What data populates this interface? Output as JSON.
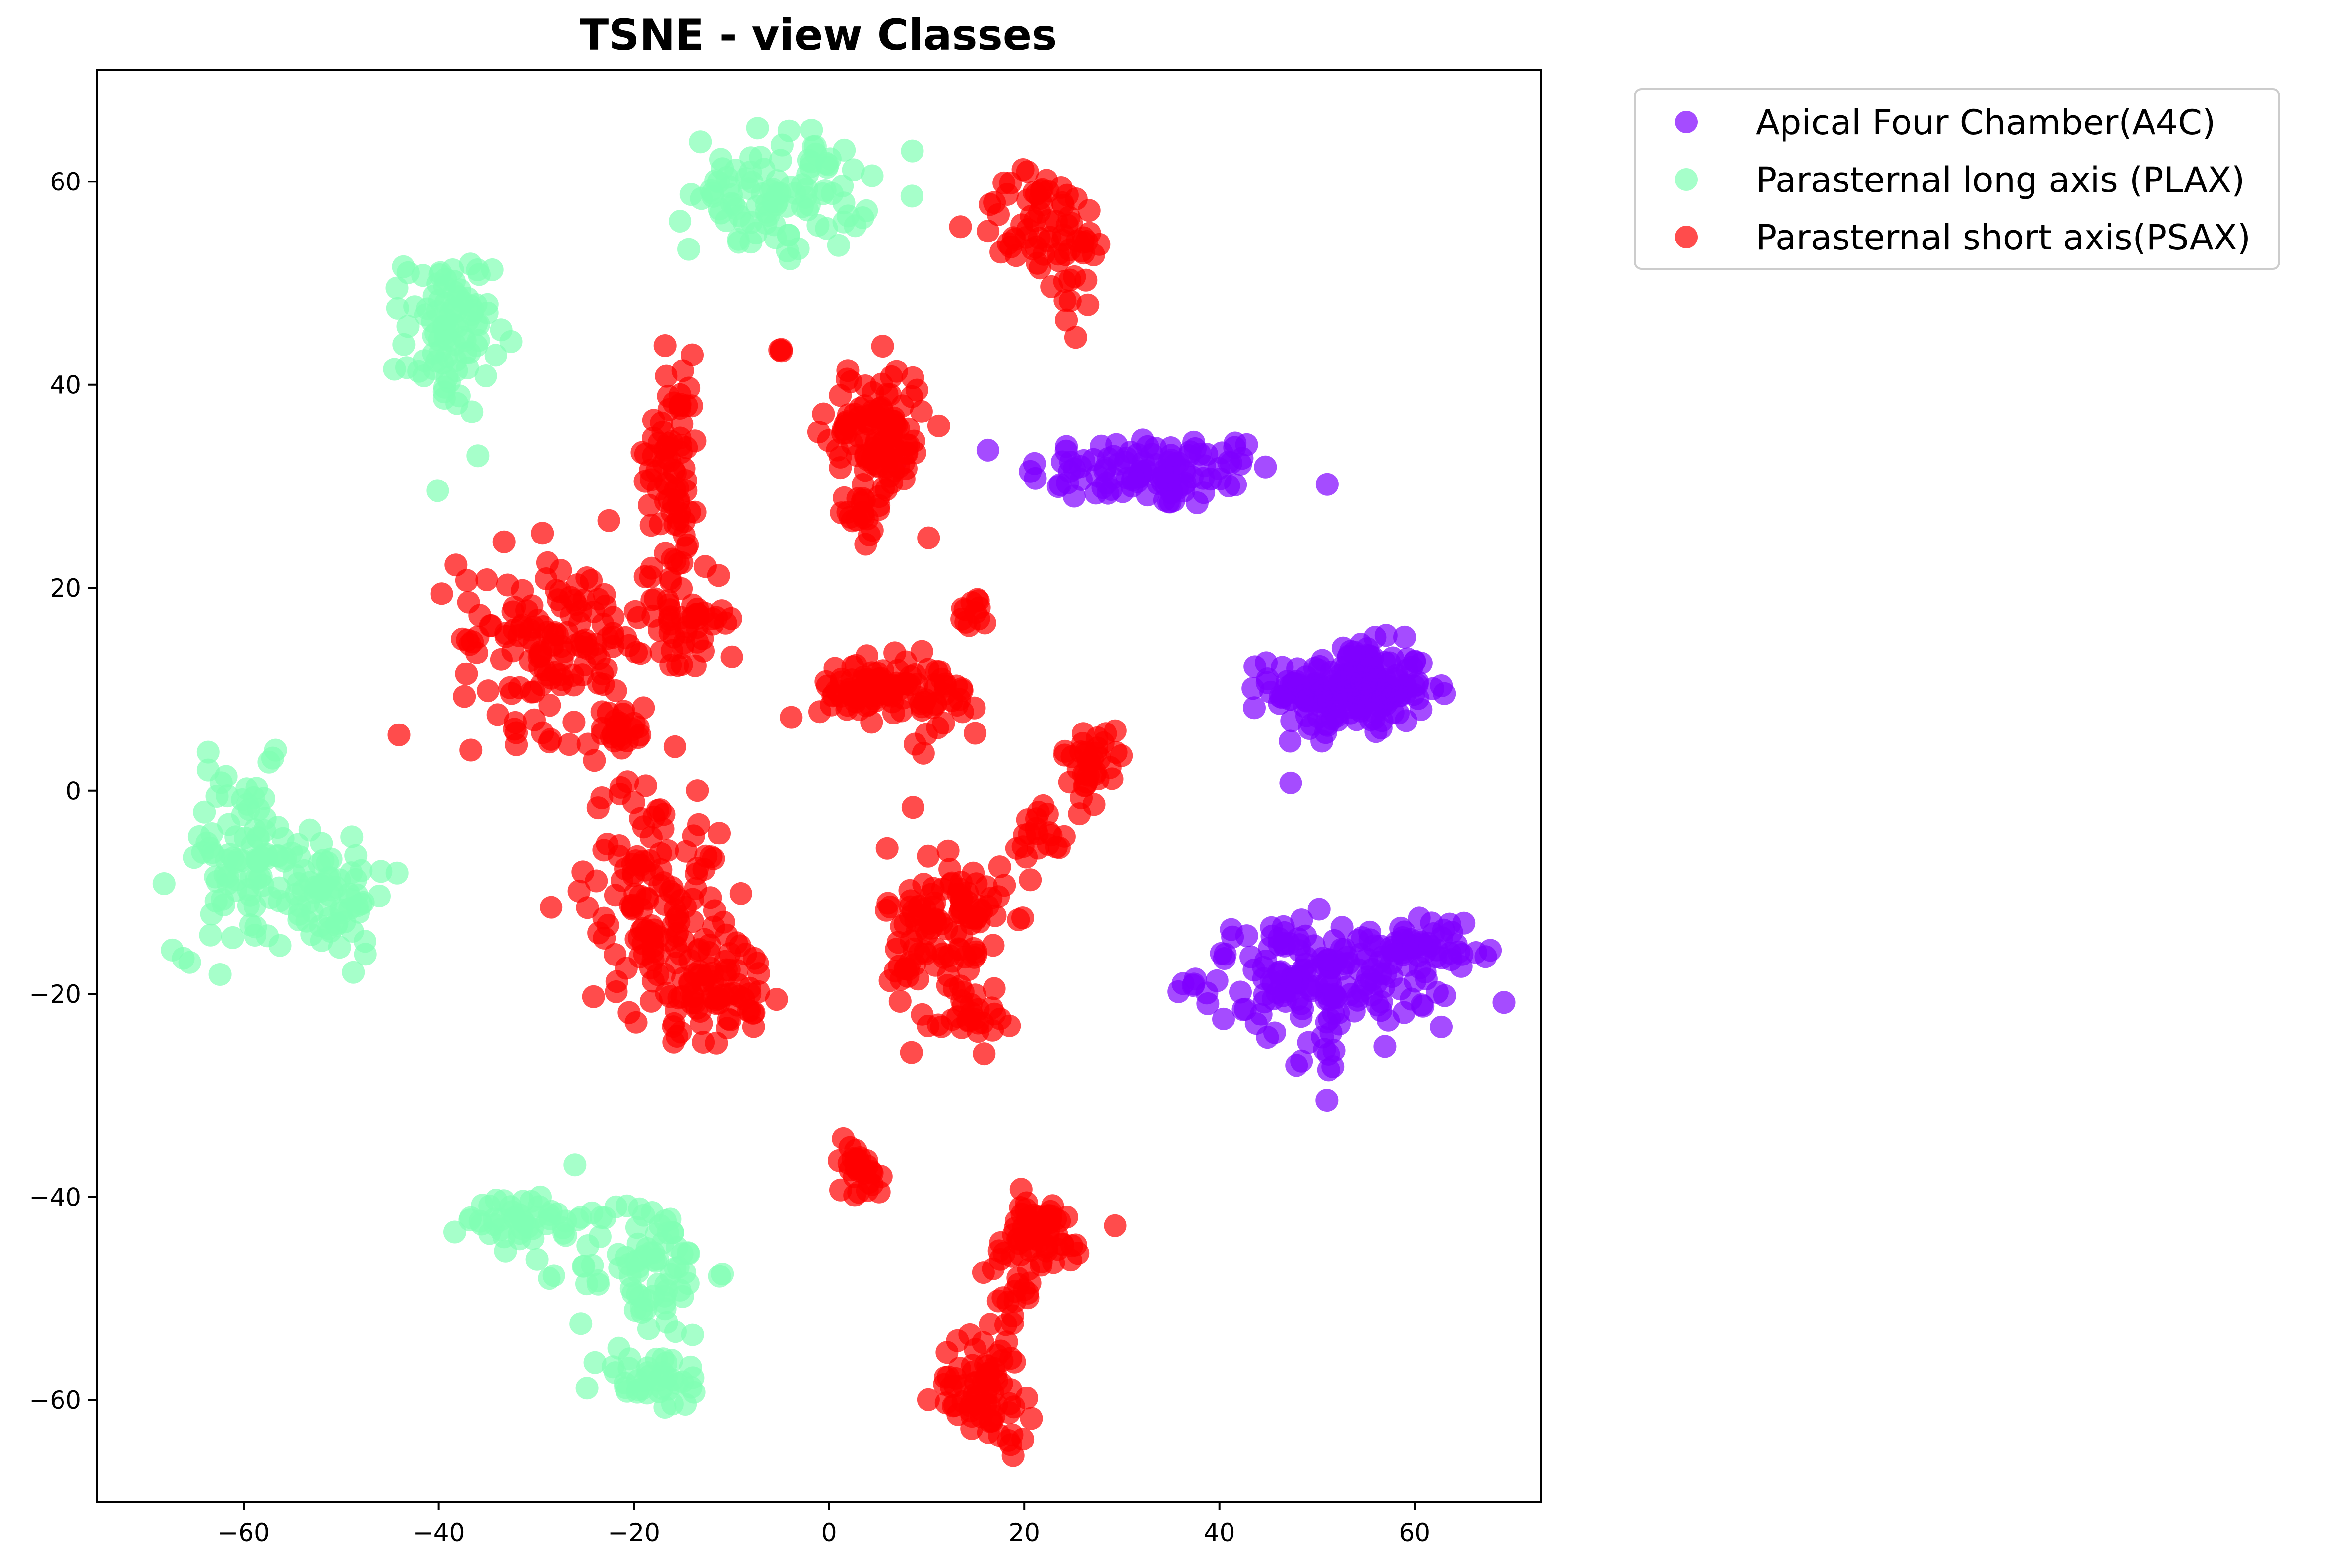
{
  "chart_data": {
    "type": "scatter",
    "title": "TSNE - view Classes",
    "xlabel": "",
    "ylabel": "",
    "xlim": [
      -75,
      73
    ],
    "ylim": [
      -70,
      71
    ],
    "xticks": [
      -60,
      -40,
      -20,
      0,
      20,
      40,
      60
    ],
    "yticks": [
      -60,
      -40,
      -20,
      0,
      20,
      40,
      60
    ],
    "tick_labels_x": [
      "−60",
      "−40",
      "−20",
      "0",
      "20",
      "40",
      "60"
    ],
    "tick_labels_y": [
      "−60",
      "−40",
      "−20",
      "0",
      "20",
      "40",
      "60"
    ],
    "grid": false,
    "legend_position": "outside-top-right",
    "series": [
      {
        "name": "Apical Four Chamber(A4C)",
        "color": "#7f00ff",
        "clusters": [
          {
            "cx": 33,
            "cy": 31.5,
            "sx": 6.5,
            "sy": 1.8,
            "n": 110
          },
          {
            "cx": 53.5,
            "cy": 10,
            "sx": 4,
            "sy": 2.2,
            "n": 200
          },
          {
            "cx": 51,
            "cy": -18,
            "sx": 6.5,
            "sy": 2.5,
            "n": 170
          },
          {
            "cx": 62,
            "cy": -16,
            "sx": 3,
            "sy": 1.5,
            "n": 30
          },
          {
            "cx": 51,
            "cy": -25,
            "sx": 1.5,
            "sy": 2,
            "n": 15
          }
        ]
      },
      {
        "name": "Parasternal long axis (PLAX)",
        "color": "#80ffb4",
        "clusters": [
          {
            "cx": -5,
            "cy": 59,
            "sx": 4.5,
            "sy": 3,
            "n": 100
          },
          {
            "cx": -39,
            "cy": 45,
            "sx": 2.2,
            "sy": 4,
            "n": 90
          },
          {
            "cx": -60,
            "cy": -7,
            "sx": 3.5,
            "sy": 4.5,
            "n": 90
          },
          {
            "cx": -52,
            "cy": -10,
            "sx": 3.5,
            "sy": 3,
            "n": 70
          },
          {
            "cx": -31,
            "cy": -42,
            "sx": 3,
            "sy": 1.5,
            "n": 45
          },
          {
            "cx": -19,
            "cy": -47,
            "sx": 3.5,
            "sy": 3.5,
            "n": 80
          },
          {
            "cx": -18,
            "cy": -58,
            "sx": 3,
            "sy": 1.5,
            "n": 40
          }
        ]
      },
      {
        "name": "Parasternal short axis(PSAX)",
        "color": "#ff0000",
        "clusters": [
          {
            "cx": 22,
            "cy": 56,
            "sx": 3.5,
            "sy": 2.5,
            "n": 60
          },
          {
            "cx": 26,
            "cy": 50,
            "sx": 1.2,
            "sy": 2.5,
            "n": 15
          },
          {
            "cx": -16,
            "cy": 33,
            "sx": 1.4,
            "sy": 5,
            "n": 70
          },
          {
            "cx": -28,
            "cy": 15,
            "sx": 5,
            "sy": 4.5,
            "n": 140
          },
          {
            "cx": -15,
            "cy": 17,
            "sx": 2.2,
            "sy": 3,
            "n": 50
          },
          {
            "cx": 5,
            "cy": 35,
            "sx": 2.5,
            "sy": 3.5,
            "n": 110
          },
          {
            "cx": 3,
            "cy": 27,
            "sx": 0.8,
            "sy": 1.2,
            "n": 15
          },
          {
            "cx": 5,
            "cy": 10,
            "sx": 3,
            "sy": 1.5,
            "n": 80
          },
          {
            "cx": 12,
            "cy": 9,
            "sx": 2,
            "sy": 2,
            "n": 25
          },
          {
            "cx": 14.5,
            "cy": 17.5,
            "sx": 0.8,
            "sy": 0.8,
            "n": 12
          },
          {
            "cx": -21,
            "cy": 6,
            "sx": 1.2,
            "sy": 1.2,
            "n": 20
          },
          {
            "cx": -5,
            "cy": 43.5,
            "sx": 0.3,
            "sy": 0.3,
            "n": 3
          },
          {
            "cx": -18,
            "cy": -10,
            "sx": 3.5,
            "sy": 6,
            "n": 130
          },
          {
            "cx": -12,
            "cy": -19,
            "sx": 3,
            "sy": 2.5,
            "n": 70
          },
          {
            "cx": 12,
            "cy": -14,
            "sx": 3,
            "sy": 4.5,
            "n": 120
          },
          {
            "cx": 15,
            "cy": -22,
            "sx": 1.5,
            "sy": 1.5,
            "n": 20
          },
          {
            "cx": 27,
            "cy": 3,
            "sx": 1.5,
            "sy": 1.5,
            "n": 35
          },
          {
            "cx": 22,
            "cy": -4,
            "sx": 1.5,
            "sy": 1.5,
            "n": 20
          },
          {
            "cx": 3,
            "cy": -37,
            "sx": 1.2,
            "sy": 1.5,
            "n": 30
          },
          {
            "cx": 21,
            "cy": -44,
            "sx": 3,
            "sy": 2,
            "n": 60
          },
          {
            "cx": 19,
            "cy": -50,
            "sx": 1.2,
            "sy": 2.5,
            "n": 20
          },
          {
            "cx": 16,
            "cy": -59,
            "sx": 2.5,
            "sy": 2.5,
            "n": 70
          }
        ]
      }
    ]
  }
}
